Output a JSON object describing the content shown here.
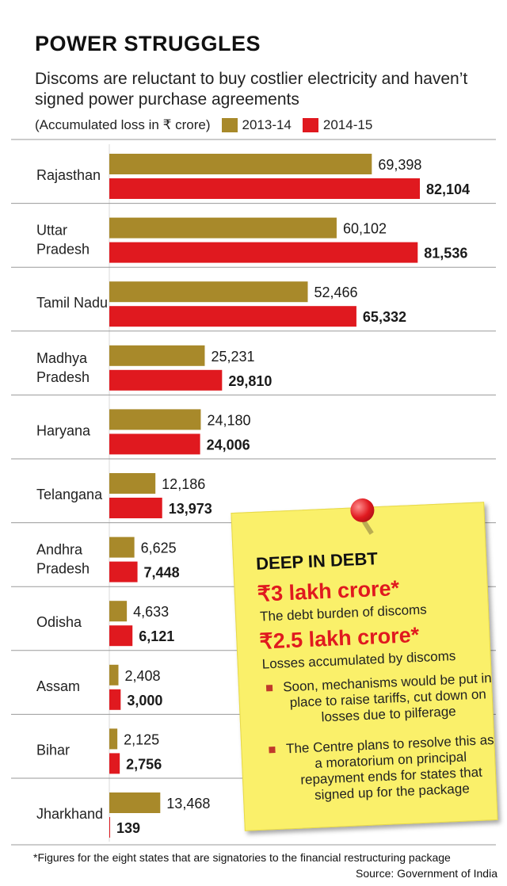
{
  "header": {
    "title": "POWER STRUGGLES",
    "subtitle": "Discoms are reluctant to buy costlier electricity and haven’t signed power purchase agreements",
    "unit_note": "(Accumulated loss in ₹ crore)"
  },
  "colors": {
    "series_2013": "#a8892a",
    "series_2014": "#e0191f",
    "note_bg": "#faf06a",
    "accent_red": "#e0191f"
  },
  "chart_data": {
    "type": "bar",
    "orientation": "horizontal",
    "categories": [
      "Rajasthan",
      "Uttar Pradesh",
      "Tamil Nadu",
      "Madhya Pradesh",
      "Haryana",
      "Telangana",
      "Andhra Pradesh",
      "Odisha",
      "Assam",
      "Bihar",
      "Jharkhand"
    ],
    "category_lines": [
      [
        "Rajasthan"
      ],
      [
        "Uttar",
        "Pradesh"
      ],
      [
        "Tamil Nadu"
      ],
      [
        "Madhya",
        "Pradesh"
      ],
      [
        "Haryana"
      ],
      [
        "Telangana"
      ],
      [
        "Andhra",
        "Pradesh"
      ],
      [
        "Odisha"
      ],
      [
        "Assam"
      ],
      [
        "Bihar"
      ],
      [
        "Jharkhand"
      ]
    ],
    "series": [
      {
        "name": "2013-14",
        "values": [
          69398,
          60102,
          52466,
          25231,
          24180,
          12186,
          6625,
          4633,
          2408,
          2125,
          13468
        ],
        "labels": [
          "69,398",
          "60,102",
          "52,466",
          "25,231",
          "24,180",
          "12,186",
          "6,625",
          "4,633",
          "2,408",
          "2,125",
          "13,468"
        ]
      },
      {
        "name": "2014-15",
        "values": [
          82104,
          81536,
          65332,
          29810,
          24006,
          13973,
          7448,
          6121,
          3000,
          2756,
          139
        ],
        "labels": [
          "82,104",
          "81,536",
          "65,332",
          "29,810",
          "24,006",
          "13,973",
          "7,448",
          "6,121",
          "3,000",
          "2,756",
          "139"
        ]
      }
    ],
    "legend_placement": "top",
    "grid": false
  },
  "note": {
    "heading": "DEEP IN DEBT",
    "figure1": "₹3 lakh crore*",
    "caption1": "The debt burden of discoms",
    "figure2": "₹2.5 lakh crore*",
    "caption2": "Losses accumulated by discoms",
    "bullet1": "Soon, mechanisms would be put in place to raise tariffs, cut down on losses due to pilferage",
    "bullet2": "The Centre plans to resolve this as a moratorium on principal repayment ends for states that signed up for the package"
  },
  "footer": {
    "footnote": "*Figures for the eight states that are signatories to the financial restructuring package",
    "source": "Source: Government of India"
  }
}
